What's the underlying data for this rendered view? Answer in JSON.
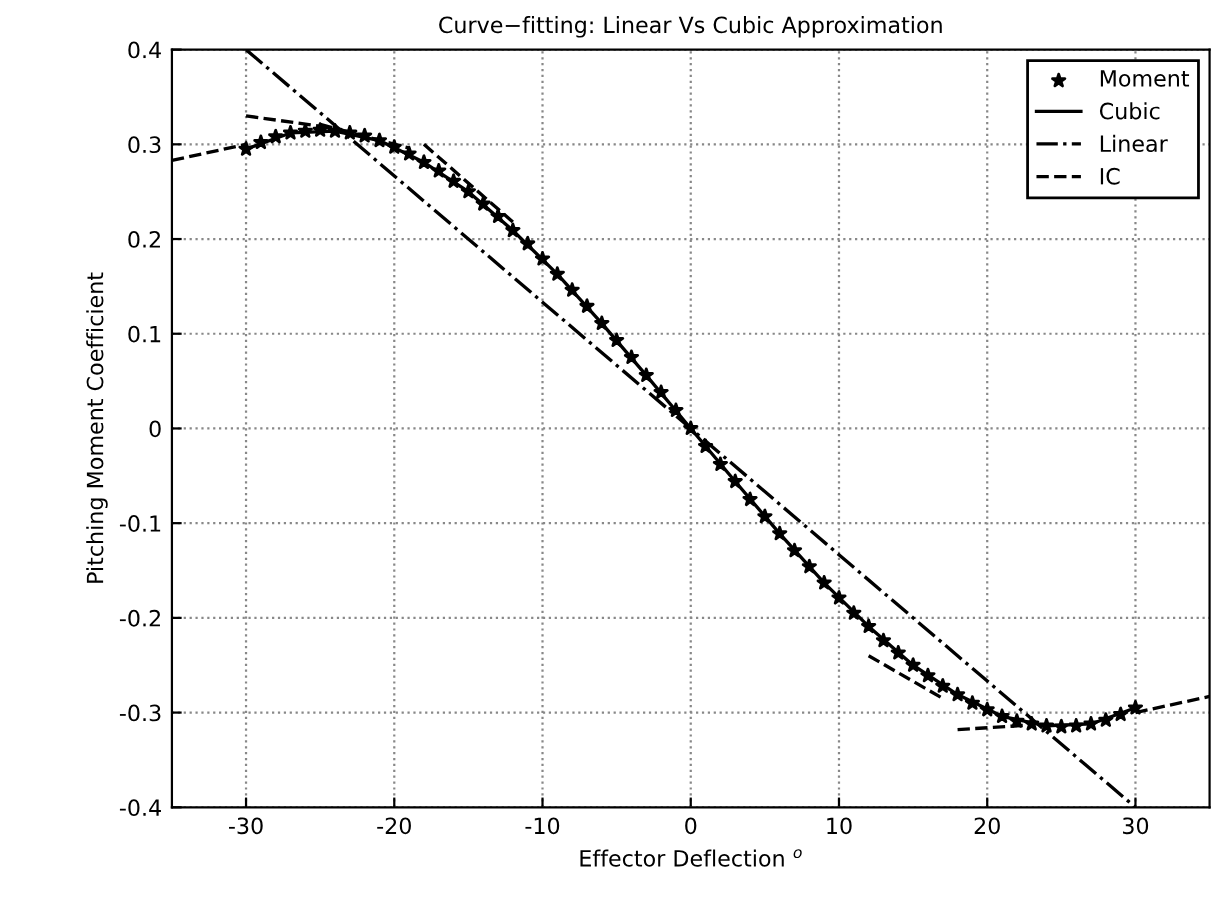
{
  "chart_data": {
    "type": "line",
    "title": "Curve−fitting: Linear Vs Cubic Approximation",
    "xlabel": "Effector Deflection $^{o}$",
    "ylabel": "Pitching Moment Coefficient",
    "xlim": [
      -35,
      35
    ],
    "ylim": [
      -0.4,
      0.4
    ],
    "xticks": [
      -30,
      -20,
      -10,
      0,
      10,
      20,
      30
    ],
    "yticks": [
      -0.4,
      -0.3,
      -0.2,
      -0.1,
      0,
      0.1,
      0.2,
      0.3,
      0.4
    ],
    "grid": true,
    "legend": "top right",
    "series": [
      {
        "name": "Moment",
        "type": "scatter",
        "marker": "star",
        "color": "#000000",
        "x": [
          -30,
          -29,
          -28,
          -27,
          -26,
          -25,
          -24,
          -23,
          -22,
          -21,
          -20,
          -19,
          -18,
          -17,
          -16,
          -15,
          -14,
          -13,
          -12,
          -11,
          -10,
          -9,
          -8,
          -7,
          -6,
          -5,
          -4,
          -3,
          -2,
          -1,
          0,
          1,
          2,
          3,
          4,
          5,
          6,
          7,
          8,
          9,
          10,
          11,
          12,
          13,
          14,
          15,
          16,
          17,
          18,
          19,
          20,
          21,
          22,
          23,
          24,
          25,
          26,
          27,
          28,
          29,
          30
        ],
        "values": [
          0.295,
          0.302,
          0.308,
          0.312,
          0.314,
          0.315,
          0.314,
          0.312,
          0.309,
          0.304,
          0.297,
          0.29,
          0.281,
          0.272,
          0.261,
          0.25,
          0.237,
          0.224,
          0.209,
          0.195,
          0.179,
          0.163,
          0.146,
          0.129,
          0.111,
          0.093,
          0.075,
          0.056,
          0.038,
          0.019,
          0,
          -0.019,
          -0.038,
          -0.056,
          -0.075,
          -0.093,
          -0.111,
          -0.129,
          -0.146,
          -0.163,
          -0.179,
          -0.195,
          -0.209,
          -0.224,
          -0.237,
          -0.25,
          -0.261,
          -0.272,
          -0.281,
          -0.29,
          -0.297,
          -0.304,
          -0.309,
          -0.312,
          -0.314,
          -0.315,
          -0.314,
          -0.312,
          -0.308,
          -0.302,
          -0.295
        ]
      },
      {
        "name": "Cubic",
        "line_style": "solid",
        "color": "#000000",
        "x": [
          -30,
          -27,
          -24,
          -21,
          -18,
          -15,
          -12,
          -9,
          -6,
          -3,
          0,
          3,
          6,
          9,
          12,
          15,
          18,
          21,
          24,
          27,
          30
        ],
        "values": [
          0.295,
          0.312,
          0.314,
          0.304,
          0.281,
          0.25,
          0.209,
          0.163,
          0.111,
          0.056,
          0,
          -0.056,
          -0.111,
          -0.163,
          -0.209,
          -0.25,
          -0.281,
          -0.304,
          -0.314,
          -0.312,
          -0.295
        ]
      },
      {
        "name": "Linear",
        "line_style": "dashdot",
        "color": "#000000",
        "x": [
          -30,
          30
        ],
        "values": [
          0.4,
          -0.4
        ]
      },
      {
        "name": "IC",
        "line_style": "dashed",
        "color": "#000000",
        "x": [
          -35,
          -30,
          null,
          -30,
          -24,
          null,
          -25,
          -19,
          null,
          -18,
          -12,
          null,
          12,
          17,
          null,
          18,
          23,
          null,
          30,
          35
        ],
        "values": [
          0.283,
          0.3,
          null,
          0.33,
          0.317,
          null,
          0.321,
          0.296,
          null,
          0.3,
          0.218,
          null,
          -0.24,
          -0.285,
          null,
          -0.318,
          -0.313,
          null,
          -0.3,
          -0.283
        ]
      }
    ]
  }
}
